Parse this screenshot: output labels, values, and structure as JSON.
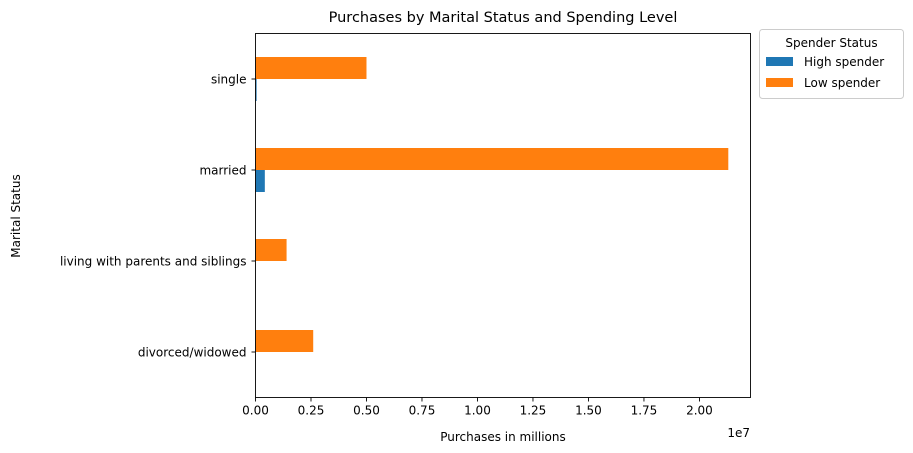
{
  "chart_data": {
    "type": "bar",
    "orientation": "horizontal",
    "title": "Purchases by Marital Status and Spending Level",
    "xlabel": "Purchases in millions",
    "ylabel": "Marital Status",
    "x_offset_label": "1e7",
    "categories": [
      "divorced/widowed",
      "living with parents and siblings",
      "married",
      "single"
    ],
    "xlim": [
      0,
      22300000
    ],
    "xticks": [
      0,
      2500000,
      5000000,
      7500000,
      10000000,
      12500000,
      15000000,
      17500000,
      20000000
    ],
    "xtick_labels": [
      "0.00",
      "0.25",
      "0.50",
      "0.75",
      "1.00",
      "1.25",
      "1.50",
      "1.75",
      "2.00"
    ],
    "series": [
      {
        "name": "High spender",
        "color": "#1f77b4",
        "values": [
          0,
          0,
          420000,
          50000
        ]
      },
      {
        "name": "Low spender",
        "color": "#ff7f0e",
        "values": [
          2600000,
          1400000,
          21300000,
          5000000
        ]
      }
    ],
    "legend": {
      "title": "Spender Status",
      "placement": "outside-top-right"
    },
    "grid": false
  }
}
